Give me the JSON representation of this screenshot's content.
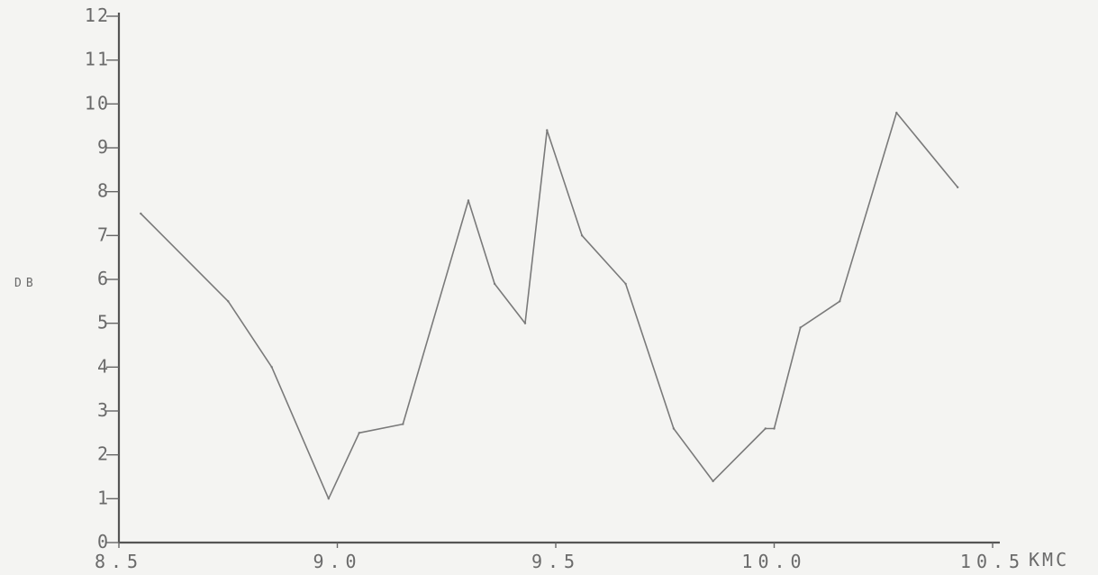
{
  "chart_data": {
    "type": "line",
    "xlabel": "KMC",
    "ylabel": "DB",
    "xlim": [
      8.5,
      10.5
    ],
    "ylim": [
      0,
      12
    ],
    "x_ticks": [
      {
        "value": 8.5,
        "label": "8.5"
      },
      {
        "value": 9.0,
        "label": "9.0"
      },
      {
        "value": 9.5,
        "label": "9.5"
      },
      {
        "value": 10.0,
        "label": "10.0"
      },
      {
        "value": 10.5,
        "label": "10.5"
      }
    ],
    "y_ticks": [
      {
        "value": 0,
        "label": "0"
      },
      {
        "value": 1,
        "label": "1"
      },
      {
        "value": 2,
        "label": "2"
      },
      {
        "value": 3,
        "label": "3"
      },
      {
        "value": 4,
        "label": "4"
      },
      {
        "value": 5,
        "label": "5"
      },
      {
        "value": 6,
        "label": "6"
      },
      {
        "value": 7,
        "label": "7"
      },
      {
        "value": 8,
        "label": "8"
      },
      {
        "value": 9,
        "label": "9"
      },
      {
        "value": 10,
        "label": "10"
      },
      {
        "value": 11,
        "label": "11"
      },
      {
        "value": 12,
        "label": "12"
      }
    ],
    "grid": false,
    "series": [
      {
        "x": [
          8.55,
          8.75,
          8.85,
          8.98,
          9.05,
          9.15,
          9.3,
          9.36,
          9.43,
          9.48,
          9.56,
          9.66,
          9.77,
          9.86,
          9.98,
          10.0,
          10.06,
          10.15,
          10.28,
          10.42
        ],
        "y": [
          7.5,
          5.5,
          4.0,
          1.0,
          2.5,
          2.7,
          7.8,
          5.9,
          5.0,
          9.4,
          7.0,
          5.9,
          2.6,
          1.4,
          2.6,
          2.6,
          4.9,
          5.5,
          9.8,
          8.1
        ]
      }
    ]
  }
}
